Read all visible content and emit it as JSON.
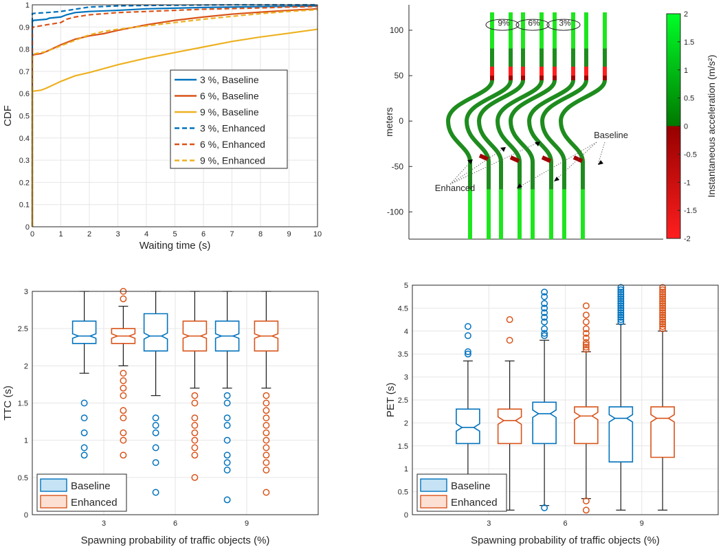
{
  "chart_data": [
    {
      "type": "line",
      "id": "cdf",
      "xlabel": "Waiting time (s)",
      "ylabel": "CDF",
      "xlim": [
        0,
        10
      ],
      "ylim": [
        0,
        1
      ],
      "xticks": [
        "0",
        "1",
        "2",
        "3",
        "4",
        "5",
        "6",
        "7",
        "8",
        "9",
        "10"
      ],
      "yticks": [
        "0",
        "0.1",
        "0.2",
        "0.3",
        "0.4",
        "0.5",
        "0.6",
        "0.7",
        "0.8",
        "0.9",
        "1"
      ],
      "grid": true,
      "legend_position": "center-right",
      "series": [
        {
          "name": "3 %, Baseline",
          "color": "#0072BD",
          "dash": false,
          "x": [
            0,
            0,
            0.05,
            0.5,
            0.6,
            1.0,
            1.2,
            1.5,
            2,
            3,
            4,
            5,
            6,
            7,
            8,
            9,
            10
          ],
          "y": [
            0,
            0.925,
            0.93,
            0.935,
            0.94,
            0.945,
            0.955,
            0.965,
            0.97,
            0.975,
            0.982,
            0.985,
            0.988,
            0.99,
            0.992,
            0.993,
            0.995
          ]
        },
        {
          "name": "6 %, Baseline",
          "color": "#D95319",
          "dash": false,
          "x": [
            0,
            0,
            0.05,
            0.3,
            0.5,
            1,
            1.5,
            2,
            2.5,
            3,
            4,
            5,
            6,
            7,
            8,
            9,
            10
          ],
          "y": [
            0,
            0.77,
            0.775,
            0.78,
            0.79,
            0.82,
            0.845,
            0.86,
            0.87,
            0.885,
            0.91,
            0.93,
            0.945,
            0.958,
            0.967,
            0.975,
            0.982
          ]
        },
        {
          "name": "9 %, Baseline",
          "color": "#EDB120",
          "dash": false,
          "x": [
            0,
            0,
            0.1,
            0.3,
            0.5,
            1,
            1.5,
            2,
            3,
            4,
            5,
            6,
            7,
            8,
            9,
            10
          ],
          "y": [
            0,
            0.61,
            0.612,
            0.615,
            0.625,
            0.655,
            0.68,
            0.695,
            0.73,
            0.76,
            0.785,
            0.81,
            0.835,
            0.855,
            0.872,
            0.89
          ]
        },
        {
          "name": "3 %, Enhanced",
          "color": "#0072BD",
          "dash": true,
          "x": [
            0,
            0,
            0.1,
            0.5,
            1,
            1.5,
            2,
            3,
            4,
            5,
            6,
            7,
            8,
            9,
            10
          ],
          "y": [
            0,
            0.96,
            0.962,
            0.965,
            0.97,
            0.98,
            0.99,
            0.995,
            0.997,
            0.998,
            0.999,
            1,
            1,
            1,
            1
          ]
        },
        {
          "name": "6 %, Enhanced",
          "color": "#D95319",
          "dash": true,
          "x": [
            0,
            0,
            0.05,
            0.5,
            1,
            1.2,
            1.5,
            2,
            3,
            4,
            5,
            6,
            7,
            8,
            9,
            10
          ],
          "y": [
            0,
            0.895,
            0.9,
            0.91,
            0.92,
            0.935,
            0.945,
            0.955,
            0.965,
            0.97,
            0.975,
            0.98,
            0.983,
            0.986,
            0.99,
            0.992
          ]
        },
        {
          "name": "9 %, Enhanced",
          "color": "#EDB120",
          "dash": true,
          "x": [
            0,
            0,
            0.1,
            0.5,
            1,
            1.5,
            2,
            2.5,
            3,
            4,
            5,
            6,
            7,
            8,
            9,
            10
          ],
          "y": [
            0,
            0.775,
            0.78,
            0.79,
            0.815,
            0.84,
            0.865,
            0.88,
            0.89,
            0.905,
            0.92,
            0.935,
            0.948,
            0.96,
            0.97,
            0.978
          ]
        }
      ]
    },
    {
      "type": "heatmap",
      "id": "track",
      "ylabel": "meters",
      "ylim": [
        -130,
        128
      ],
      "yticks": [
        "-100",
        "-50",
        "0",
        "50",
        "100"
      ],
      "colorbar_label": "Instantaneous acceleration (m/s²)",
      "colorbar_ticks": [
        "2",
        "1.5",
        "1",
        "0.5",
        "0",
        "-0.5",
        "-1",
        "-1.5",
        "-2"
      ],
      "colorbar_range": [
        -2,
        2
      ],
      "scenario_labels": [
        "9%",
        "6%",
        "3%"
      ],
      "lanes": [
        {
          "side": "left",
          "x_top": 16,
          "x_bottom": -16
        },
        {
          "side": "right",
          "x_top": 26,
          "x_bottom": -6
        }
      ],
      "annotations": [
        "Baseline",
        "Enhanced"
      ]
    },
    {
      "type": "box",
      "id": "ttc",
      "xlabel": "Spawning probability of traffic objects (%)",
      "ylabel": "TTC (s)",
      "ylim": [
        0,
        3
      ],
      "yticks": [
        "0",
        "0.5",
        "1",
        "1.5",
        "2",
        "2.5",
        "3"
      ],
      "categories": [
        "3",
        "6",
        "9"
      ],
      "legend": [
        "Baseline",
        "Enhanced"
      ],
      "legend_position": "bottom-left",
      "boxes": [
        {
          "group": "Baseline",
          "category": "3",
          "whisker_low": 1.9,
          "q1": 2.3,
          "median": 2.4,
          "q3": 2.6,
          "whisker_high": 3.0,
          "notch": [
            2.37,
            2.43
          ],
          "outliers": [
            1.5,
            1.3,
            1.1,
            0.9,
            0.8
          ]
        },
        {
          "group": "Enhanced",
          "category": "3",
          "whisker_low": 2.0,
          "q1": 2.3,
          "median": 2.4,
          "q3": 2.5,
          "whisker_high": 2.8,
          "notch": [
            2.37,
            2.43
          ],
          "outliers": [
            3.0,
            2.9,
            1.9,
            1.8,
            1.7,
            1.6,
            1.4,
            1.3,
            1.1,
            1.0,
            0.8
          ]
        },
        {
          "group": "Baseline",
          "category": "6",
          "whisker_low": 1.6,
          "q1": 2.2,
          "median": 2.4,
          "q3": 2.7,
          "whisker_high": 3.0,
          "notch": [
            2.36,
            2.44
          ],
          "outliers": [
            1.3,
            1.2,
            1.1,
            0.9,
            0.7,
            0.3
          ]
        },
        {
          "group": "Enhanced",
          "category": "6",
          "whisker_low": 1.7,
          "q1": 2.2,
          "median": 2.4,
          "q3": 2.6,
          "whisker_high": 3.0,
          "notch": [
            2.37,
            2.43
          ],
          "outliers": [
            1.6,
            1.5,
            1.3,
            1.2,
            1.1,
            1.0,
            0.9,
            0.8,
            0.5
          ]
        },
        {
          "group": "Baseline",
          "category": "9",
          "whisker_low": 1.7,
          "q1": 2.2,
          "median": 2.4,
          "q3": 2.6,
          "whisker_high": 3.0,
          "notch": [
            2.37,
            2.43
          ],
          "outliers": [
            1.6,
            1.5,
            1.3,
            1.2,
            1.0,
            0.8,
            0.7,
            0.6,
            0.2
          ]
        },
        {
          "group": "Enhanced",
          "category": "9",
          "whisker_low": 1.7,
          "q1": 2.2,
          "median": 2.4,
          "q3": 2.6,
          "whisker_high": 3.0,
          "notch": [
            2.37,
            2.43
          ],
          "outliers": [
            1.6,
            1.5,
            1.4,
            1.3,
            1.2,
            1.1,
            1.0,
            0.9,
            0.8,
            0.7,
            0.6,
            0.3
          ]
        }
      ]
    },
    {
      "type": "box",
      "id": "pet",
      "xlabel": "Spawning probability of traffic objects (%)",
      "ylabel": "PET (s)",
      "ylim": [
        0,
        5
      ],
      "yticks": [
        "0",
        "0.5",
        "1",
        "1.5",
        "2",
        "2.5",
        "3",
        "3.5",
        "4",
        "4.5",
        "5"
      ],
      "categories": [
        "3",
        "6",
        "9"
      ],
      "legend": [
        "Baseline",
        "Enhanced"
      ],
      "legend_position": "bottom-left",
      "boxes": [
        {
          "group": "Baseline",
          "category": "3",
          "whisker_low": 0.1,
          "q1": 1.55,
          "median": 1.9,
          "q3": 2.3,
          "whisker_high": 3.35,
          "notch": [
            1.82,
            1.98
          ],
          "outliers": [
            4.1,
            3.9,
            3.55,
            3.5
          ]
        },
        {
          "group": "Enhanced",
          "category": "3",
          "whisker_low": 0.1,
          "q1": 1.55,
          "median": 2.05,
          "q3": 2.3,
          "whisker_high": 3.35,
          "notch": [
            1.97,
            2.13
          ],
          "outliers": [
            4.25,
            3.8
          ]
        },
        {
          "group": "Baseline",
          "category": "6",
          "whisker_low": 0.2,
          "q1": 1.55,
          "median": 2.2,
          "q3": 2.45,
          "whisker_high": 3.8,
          "notch": [
            2.12,
            2.28
          ],
          "outliers": [
            4.85,
            4.75,
            4.6,
            4.5,
            4.4,
            4.3,
            4.2,
            4.05,
            3.95,
            3.9,
            0.15
          ]
        },
        {
          "group": "Enhanced",
          "category": "6",
          "whisker_low": 0.35,
          "q1": 1.55,
          "median": 2.15,
          "q3": 2.35,
          "whisker_high": 3.55,
          "notch": [
            2.07,
            2.23
          ],
          "outliers": [
            4.55,
            4.35,
            4.2,
            4.05,
            3.95,
            3.85,
            3.75,
            3.7,
            3.65,
            3.6,
            0.3,
            0.1
          ]
        },
        {
          "group": "Baseline",
          "category": "9",
          "whisker_low": 0.1,
          "q1": 1.15,
          "median": 2.1,
          "q3": 2.35,
          "whisker_high": 4.15,
          "notch": [
            2.02,
            2.18
          ],
          "outliers": [
            4.95,
            4.9,
            4.85,
            4.8,
            4.75,
            4.7,
            4.65,
            4.6,
            4.55,
            4.5,
            4.45,
            4.4,
            4.35,
            4.3,
            4.25,
            4.2
          ]
        },
        {
          "group": "Enhanced",
          "category": "9",
          "whisker_low": 0.1,
          "q1": 1.25,
          "median": 2.1,
          "q3": 2.35,
          "whisker_high": 4.0,
          "notch": [
            2.02,
            2.18
          ],
          "outliers": [
            4.95,
            4.9,
            4.85,
            4.8,
            4.75,
            4.7,
            4.65,
            4.6,
            4.55,
            4.5,
            4.45,
            4.4,
            4.35,
            4.3,
            4.25,
            4.2,
            4.15,
            4.1,
            4.05
          ]
        }
      ]
    }
  ],
  "colors": {
    "baseline": "#0072BD",
    "baseline_fill": "#C5E3F4",
    "enhanced": "#D95319",
    "enhanced_fill": "#FCE0D4",
    "yellow": "#EDB120",
    "grid": "#E6E6E6",
    "whisker": "#1a1a1a",
    "track_dark_green": "#1E8C1E",
    "track_bright_green": "#1EE61E",
    "track_dark_red": "#A00000",
    "track_red": "#FF1E1E"
  }
}
